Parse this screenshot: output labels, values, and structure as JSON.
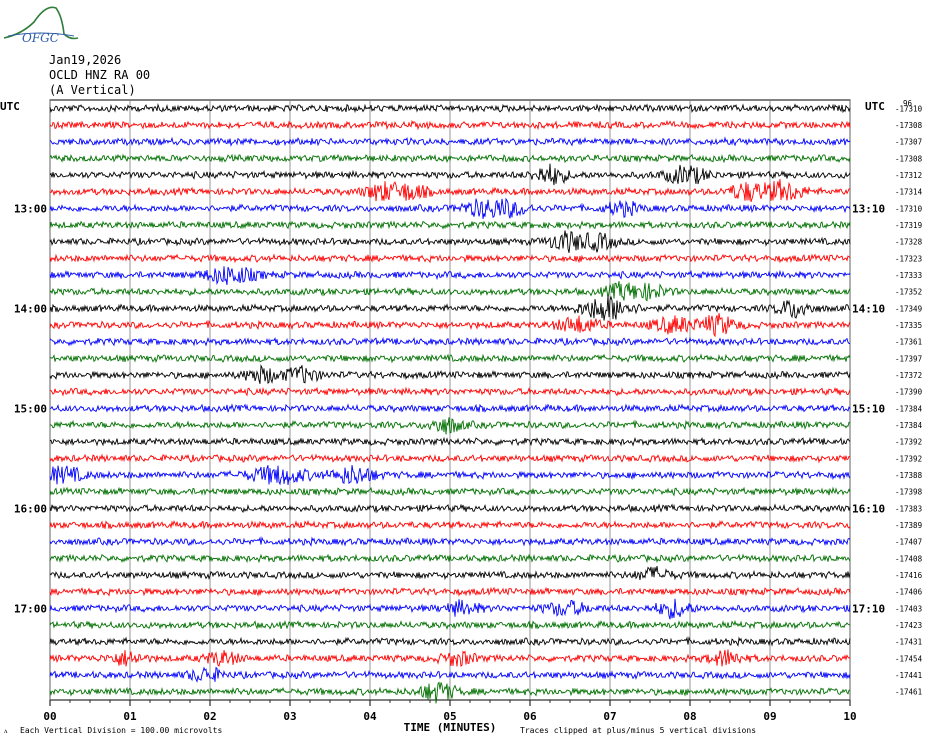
{
  "logo": {
    "text": "OFGC",
    "color": "#2f7d3a",
    "text_color": "#2f5da8"
  },
  "header": {
    "date": "Jan19,2026",
    "station": "OCLD HNZ RA 00",
    "component": "(A Vertical)"
  },
  "chart_data": {
    "type": "line",
    "title": "",
    "xlabel": "TIME (MINUTES)",
    "ylabel": "",
    "xlim": [
      0,
      10
    ],
    "x_ticks": [
      "00",
      "01",
      "02",
      "03",
      "04",
      "05",
      "06",
      "07",
      "08",
      "09",
      "10"
    ],
    "left_axis_label": "UTC",
    "right_axis_label": "UTC",
    "right_top_label": "96",
    "left_time_labels": [
      {
        "row": 6,
        "label": "13:00"
      },
      {
        "row": 12,
        "label": "14:00"
      },
      {
        "row": 18,
        "label": "15:00"
      },
      {
        "row": 24,
        "label": "16:00"
      },
      {
        "row": 30,
        "label": "17:00"
      }
    ],
    "right_time_labels": [
      {
        "row": 6,
        "label": "13:10"
      },
      {
        "row": 12,
        "label": "14:10"
      },
      {
        "row": 18,
        "label": "15:10"
      },
      {
        "row": 24,
        "label": "16:10"
      },
      {
        "row": 30,
        "label": "17:10"
      }
    ],
    "trace_colors": [
      "#000000",
      "#ff0000",
      "#0000ff",
      "#007000"
    ],
    "offsets": [
      "-17310",
      "-17308",
      "-17307",
      "-17308",
      "-17312",
      "-17314",
      "-17310",
      "-17319",
      "-17328",
      "-17323",
      "-17333",
      "-17352",
      "-17349",
      "-17335",
      "-17361",
      "-17397",
      "-17372",
      "-17390",
      "-17384",
      "-17384",
      "-17392",
      "-17392",
      "-17388",
      "-17398",
      "-17383",
      "-17389",
      "-17407",
      "-17408",
      "-17416",
      "-17406",
      "-17403",
      "-17423",
      "-17431",
      "-17454",
      "-17441",
      "-17461"
    ],
    "events": [
      {
        "row": 4,
        "x": 6.25,
        "amp": 9,
        "w": 0.2
      },
      {
        "row": 4,
        "x": 7.95,
        "amp": 8,
        "w": 0.25
      },
      {
        "row": 5,
        "x": 4.15,
        "amp": 8,
        "w": 0.2
      },
      {
        "row": 5,
        "x": 4.5,
        "amp": 7,
        "w": 0.2
      },
      {
        "row": 5,
        "x": 8.7,
        "amp": 8,
        "w": 0.2
      },
      {
        "row": 5,
        "x": 9.15,
        "amp": 9,
        "w": 0.25
      },
      {
        "row": 6,
        "x": 5.4,
        "amp": 7,
        "w": 0.25
      },
      {
        "row": 6,
        "x": 5.75,
        "amp": 6,
        "w": 0.25
      },
      {
        "row": 6,
        "x": 7.15,
        "amp": 6,
        "w": 0.2
      },
      {
        "row": 8,
        "x": 6.45,
        "amp": 9,
        "w": 0.2
      },
      {
        "row": 8,
        "x": 6.85,
        "amp": 7,
        "w": 0.2
      },
      {
        "row": 10,
        "x": 2.25,
        "amp": 8,
        "w": 0.3
      },
      {
        "row": 11,
        "x": 7.15,
        "amp": 7,
        "w": 0.2
      },
      {
        "row": 11,
        "x": 7.5,
        "amp": 6,
        "w": 0.2
      },
      {
        "row": 12,
        "x": 6.95,
        "amp": 11,
        "w": 0.3
      },
      {
        "row": 12,
        "x": 9.3,
        "amp": 8,
        "w": 0.2
      },
      {
        "row": 13,
        "x": 6.6,
        "amp": 7,
        "w": 0.25
      },
      {
        "row": 13,
        "x": 7.8,
        "amp": 7,
        "w": 0.25
      },
      {
        "row": 13,
        "x": 8.35,
        "amp": 9,
        "w": 0.2
      },
      {
        "row": 16,
        "x": 2.65,
        "amp": 7,
        "w": 0.2
      },
      {
        "row": 16,
        "x": 3.15,
        "amp": 7,
        "w": 0.2
      },
      {
        "row": 19,
        "x": 4.95,
        "amp": 7,
        "w": 0.2
      },
      {
        "row": 22,
        "x": 0.15,
        "amp": 7,
        "w": 0.25
      },
      {
        "row": 22,
        "x": 2.85,
        "amp": 8,
        "w": 0.35
      },
      {
        "row": 22,
        "x": 3.8,
        "amp": 8,
        "w": 0.25
      },
      {
        "row": 28,
        "x": 7.55,
        "amp": 6,
        "w": 0.2
      },
      {
        "row": 30,
        "x": 5.15,
        "amp": 6,
        "w": 0.2
      },
      {
        "row": 30,
        "x": 6.45,
        "amp": 6,
        "w": 0.25
      },
      {
        "row": 30,
        "x": 7.8,
        "amp": 8,
        "w": 0.2
      },
      {
        "row": 33,
        "x": 0.95,
        "amp": 6,
        "w": 0.2
      },
      {
        "row": 33,
        "x": 2.15,
        "amp": 6,
        "w": 0.2
      },
      {
        "row": 33,
        "x": 5.1,
        "amp": 6,
        "w": 0.2
      },
      {
        "row": 33,
        "x": 8.45,
        "amp": 7,
        "w": 0.2
      },
      {
        "row": 34,
        "x": 1.95,
        "amp": 6,
        "w": 0.2
      },
      {
        "row": 35,
        "x": 4.85,
        "amp": 9,
        "w": 0.2
      }
    ]
  },
  "footer": {
    "scale_text": "Each Vertical Division =  100.00 microvolts",
    "clip_text": "Traces clipped at plus/minus 5 vertical divisions"
  }
}
